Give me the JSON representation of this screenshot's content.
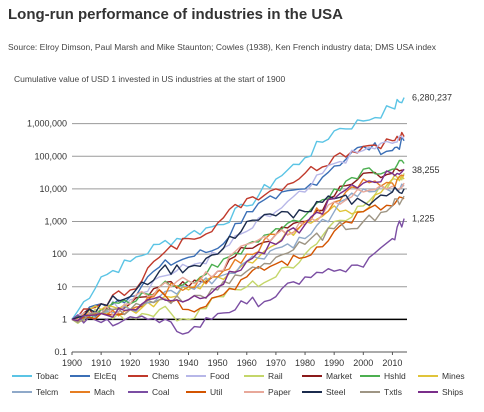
{
  "title": "Long-run performance of industries in the USA",
  "source": "Source: Elroy Dimson, Paul Marsh and Mike Staunton; Cowles (1938), Ken French industry data; DMS USA index",
  "chart_data": {
    "type": "line",
    "title": "Long-run performance of industries in the USA",
    "subtitle": "Cumulative value of USD 1 invested in US industries at the start of 1900",
    "xlabel": "",
    "ylabel": "",
    "y_scale": "log",
    "ylim": [
      0.1,
      10000000
    ],
    "xlim": [
      1900,
      2015
    ],
    "x_ticks": [
      "1900",
      "1910",
      "1920",
      "1930",
      "1940",
      "1950",
      "1960",
      "1970",
      "1980",
      "1990",
      "2000",
      "2010"
    ],
    "y_ticks": [
      "0.1",
      "1",
      "10",
      "100",
      "1,000",
      "10,000",
      "100,000",
      "1,000,000"
    ],
    "grid": true,
    "legend_position": "bottom",
    "end_labels": [
      "6,280,237",
      "38,255",
      "1,225"
    ],
    "x": [
      1900,
      1910,
      1920,
      1930,
      1940,
      1950,
      1960,
      1970,
      1980,
      1990,
      2000,
      2010,
      2014
    ],
    "series": [
      {
        "name": "Tobac",
        "color": "#5bc4e5",
        "values": [
          1,
          20,
          60,
          200,
          400,
          800,
          3000,
          20000,
          90000,
          600000,
          1200000,
          3000000,
          6280237
        ]
      },
      {
        "name": "ElcEq",
        "color": "#3b6fb6",
        "values": [
          1,
          3,
          5,
          40,
          80,
          150,
          2000,
          5000,
          10000,
          50000,
          200000,
          150000,
          300000
        ]
      },
      {
        "name": "Chems",
        "color": "#c0392b",
        "values": [
          1,
          3,
          8,
          80,
          300,
          900,
          5000,
          10000,
          30000,
          100000,
          200000,
          300000,
          400000
        ]
      },
      {
        "name": "Food",
        "color": "#b7b7e8",
        "values": [
          1,
          2,
          4,
          20,
          40,
          100,
          500,
          2000,
          8000,
          60000,
          150000,
          250000,
          350000
        ]
      },
      {
        "name": "Rail",
        "color": "#c4d66a",
        "values": [
          1,
          1.5,
          1.2,
          2,
          1,
          5,
          10,
          20,
          100,
          1000,
          3000,
          20000,
          30000
        ]
      },
      {
        "name": "Market",
        "color": "#8b1a1a",
        "values": [
          1,
          2,
          3,
          10,
          10,
          30,
          150,
          400,
          1000,
          6000,
          30000,
          30000,
          38255
        ]
      },
      {
        "name": "Hshld",
        "color": "#4caf50",
        "values": [
          1,
          2,
          3,
          10,
          15,
          40,
          200,
          600,
          1500,
          10000,
          40000,
          40000,
          60000
        ]
      },
      {
        "name": "Mines",
        "color": "#e0c43a",
        "values": [
          1,
          2,
          2,
          4,
          8,
          20,
          60,
          200,
          1000,
          3000,
          2000,
          20000,
          20000
        ]
      },
      {
        "name": "Telcm",
        "color": "#8fa9c9",
        "values": [
          1,
          1.5,
          2,
          5,
          10,
          20,
          60,
          150,
          300,
          2000,
          10000,
          8000,
          12000
        ]
      },
      {
        "name": "Mach",
        "color": "#e67e22",
        "values": [
          1,
          1.5,
          2,
          8,
          10,
          20,
          100,
          400,
          1000,
          4000,
          20000,
          15000,
          25000
        ]
      },
      {
        "name": "Coal",
        "color": "#7b4ea3",
        "values": [
          1,
          0.8,
          1.2,
          0.8,
          0.4,
          1.5,
          3,
          5,
          20,
          30,
          40,
          300,
          1225
        ]
      },
      {
        "name": "Util",
        "color": "#d35400",
        "values": [
          1,
          1.5,
          2,
          8,
          2,
          5,
          20,
          50,
          80,
          500,
          2000,
          3000,
          5000
        ]
      },
      {
        "name": "Paper",
        "color": "#e8a89a",
        "values": [
          1,
          1.5,
          3,
          10,
          15,
          30,
          200,
          400,
          800,
          4000,
          8000,
          12000,
          15000
        ]
      },
      {
        "name": "Steel",
        "color": "#1b2b4d",
        "values": [
          1,
          3,
          5,
          30,
          40,
          100,
          1000,
          1500,
          2000,
          5000,
          4000,
          8000,
          10000
        ]
      },
      {
        "name": "Txtls",
        "color": "#9e9584",
        "values": [
          1,
          1.5,
          2,
          4,
          4,
          8,
          30,
          80,
          200,
          600,
          1000,
          3000,
          6000
        ]
      },
      {
        "name": "Ships",
        "color": "#7a2e8a",
        "values": [
          1,
          1.5,
          2,
          5,
          4,
          10,
          60,
          200,
          800,
          5000,
          15000,
          30000,
          40000
        ]
      }
    ]
  }
}
